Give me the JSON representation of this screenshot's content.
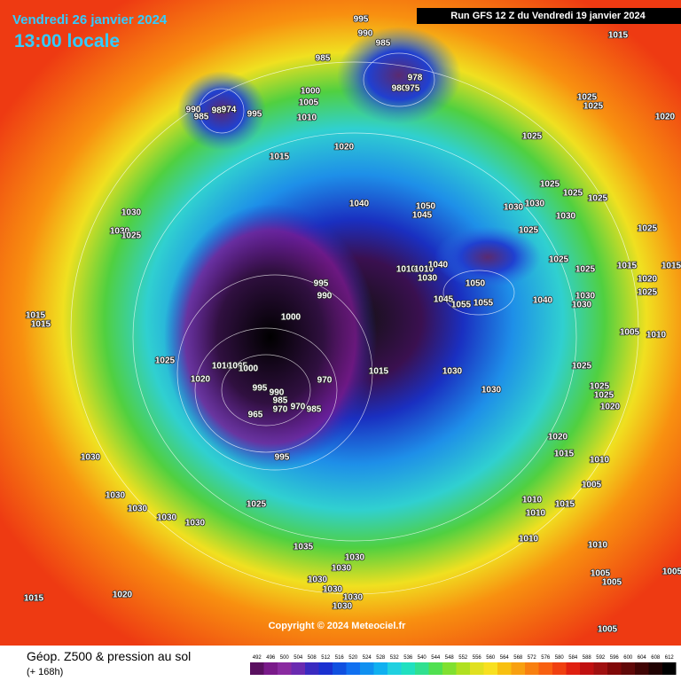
{
  "header": {
    "date": "Vendredi 26 janvier 2024",
    "time": "13:00 locale",
    "run": "Run GFS 12 Z du Vendredi 19 janvier 2024"
  },
  "copyright": "Copyright © 2024 Meteociel.fr",
  "footer": {
    "title": "Géop. Z500 & pression au sol",
    "lead": "(+ 168h)"
  },
  "isobar_labels": [
    995,
    990,
    985,
    985,
    978,
    980,
    975,
    1015,
    990,
    985,
    980,
    974,
    995,
    1000,
    1005,
    1010,
    1025,
    1025,
    1020,
    1020,
    1015,
    1025,
    1025,
    1025,
    1025,
    1040,
    1050,
    1045,
    1030,
    1030,
    1030,
    1025,
    1030,
    1030,
    1025,
    1025,
    1025,
    1025,
    1015,
    1015,
    1020,
    1025,
    1010,
    1010,
    1030,
    1040,
    1050,
    995,
    990,
    1045,
    1055,
    1055,
    1040,
    1030,
    1030,
    1015,
    1015,
    1000,
    1005,
    1010,
    1025,
    1015,
    1030,
    1025,
    1010,
    1005,
    1000,
    1020,
    970,
    995,
    990,
    985,
    970,
    965,
    970,
    985,
    1030,
    1025,
    1025,
    1020,
    1030,
    995,
    1020,
    1015,
    1010,
    1005,
    1030,
    1030,
    1030,
    1030,
    1025,
    1010,
    1010,
    1015,
    1010,
    1010,
    1035,
    1030,
    1030,
    1030,
    1030,
    1030,
    1030,
    1020,
    1015,
    1005,
    1005,
    1005,
    1005
  ],
  "scale_labels": [
    492,
    496,
    500,
    504,
    508,
    512,
    516,
    520,
    524,
    528,
    532,
    536,
    540,
    544,
    548,
    552,
    556,
    560,
    564,
    568,
    572,
    576,
    580,
    584,
    588,
    592,
    596,
    600,
    604,
    608,
    612
  ]
}
